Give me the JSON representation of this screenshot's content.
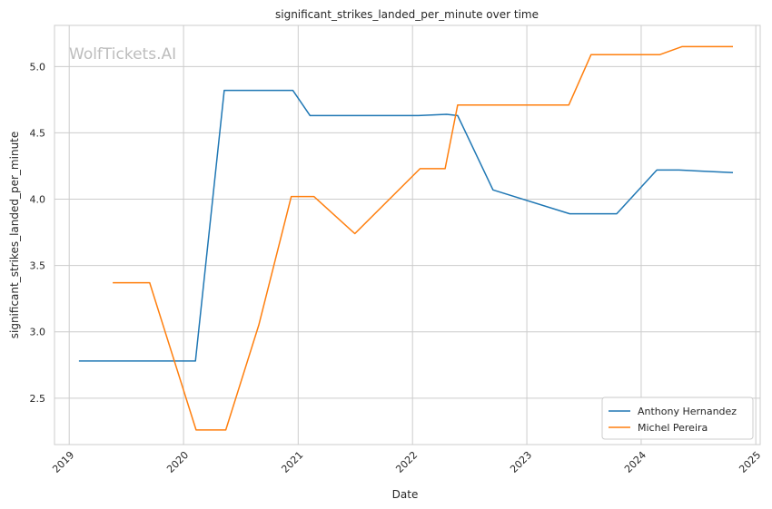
{
  "chart_data": {
    "type": "line",
    "title": "significant_strikes_landed_per_minute over time",
    "xlabel": "Date",
    "ylabel": "significant_strikes_landed_per_minute",
    "watermark": "WolfTickets.AI",
    "x_ticks": [
      "2019",
      "2020",
      "2021",
      "2022",
      "2023",
      "2024",
      "2025"
    ],
    "y_ticks": [
      "2.5",
      "3.0",
      "3.5",
      "4.0",
      "4.5",
      "5.0"
    ],
    "xlim": [
      "2018-11-15",
      "2025-01-15"
    ],
    "ylim": [
      2.15,
      5.31
    ],
    "grid": true,
    "legend_position": "lower-right",
    "series": [
      {
        "name": "Anthony Hernandez",
        "color": "#1f77b4",
        "points": [
          {
            "x": "2019-02-01",
            "y": 2.78
          },
          {
            "x": "2020-02-08",
            "y": 2.78
          },
          {
            "x": "2020-05-10",
            "y": 4.82
          },
          {
            "x": "2020-12-15",
            "y": 4.82
          },
          {
            "x": "2021-02-08",
            "y": 4.63
          },
          {
            "x": "2022-01-20",
            "y": 4.63
          },
          {
            "x": "2022-04-20",
            "y": 4.64
          },
          {
            "x": "2022-05-25",
            "y": 4.63
          },
          {
            "x": "2022-09-15",
            "y": 4.07
          },
          {
            "x": "2023-05-18",
            "y": 3.89
          },
          {
            "x": "2023-10-15",
            "y": 3.89
          },
          {
            "x": "2024-02-20",
            "y": 4.22
          },
          {
            "x": "2024-05-01",
            "y": 4.22
          },
          {
            "x": "2024-10-20",
            "y": 4.2
          }
        ]
      },
      {
        "name": "Michel Pereira",
        "color": "#ff7f0e",
        "points": [
          {
            "x": "2019-05-20",
            "y": 3.37
          },
          {
            "x": "2019-09-15",
            "y": 3.37
          },
          {
            "x": "2020-02-10",
            "y": 2.26
          },
          {
            "x": "2020-05-15",
            "y": 2.26
          },
          {
            "x": "2020-08-28",
            "y": 3.05
          },
          {
            "x": "2020-12-10",
            "y": 4.02
          },
          {
            "x": "2021-02-20",
            "y": 4.02
          },
          {
            "x": "2021-07-01",
            "y": 3.74
          },
          {
            "x": "2022-01-25",
            "y": 4.23
          },
          {
            "x": "2022-04-15",
            "y": 4.23
          },
          {
            "x": "2022-05-25",
            "y": 4.71
          },
          {
            "x": "2023-05-15",
            "y": 4.71
          },
          {
            "x": "2023-07-25",
            "y": 5.09
          },
          {
            "x": "2024-03-01",
            "y": 5.09
          },
          {
            "x": "2024-05-10",
            "y": 5.15
          },
          {
            "x": "2024-10-20",
            "y": 5.15
          }
        ]
      }
    ]
  }
}
